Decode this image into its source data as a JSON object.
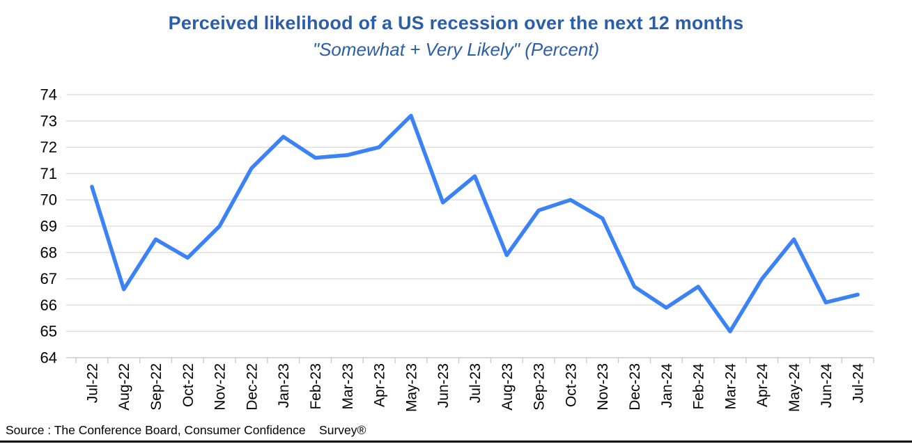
{
  "header": {
    "title": "Perceived likelihood of a US recession over the next 12 months",
    "subtitle": "\"Somewhat + Very Likely\" (Percent)"
  },
  "footer": {
    "source": "Source : The Conference Board, Consumer Confidence    Survey®"
  },
  "colors": {
    "title_blue": "#2B5EA9",
    "line_blue": "#3B82F6",
    "gridline": "#DBDBDB",
    "axis": "#C8C8C8",
    "label_text": "#000000",
    "bottom_rule": "#000000"
  },
  "chart_data": {
    "type": "line",
    "title": "Perceived likelihood of a US recession over the next 12 months",
    "subtitle": "\"Somewhat + Very Likely\" (Percent)",
    "categories": [
      "Jul-22",
      "Aug-22",
      "Sep-22",
      "Oct-22",
      "Nov-22",
      "Dec-22",
      "Jan-23",
      "Feb-23",
      "Mar-23",
      "Apr-23",
      "May-23",
      "Jun-23",
      "Jul-23",
      "Aug-23",
      "Sep-23",
      "Oct-23",
      "Nov-23",
      "Dec-23",
      "Jan-24",
      "Feb-24",
      "Mar-24",
      "Apr-24",
      "May-24",
      "Jun-24",
      "Jul-24"
    ],
    "series": [
      {
        "name": "Somewhat + Very Likely (Percent)",
        "values": [
          70.5,
          66.6,
          68.5,
          67.8,
          69.0,
          71.2,
          72.4,
          71.6,
          71.7,
          72.0,
          73.2,
          69.9,
          70.9,
          67.9,
          69.6,
          70.0,
          69.3,
          66.7,
          65.9,
          66.7,
          65.0,
          67.0,
          68.5,
          66.1,
          66.4
        ]
      }
    ],
    "xlabel": "",
    "ylabel": "",
    "ylim": [
      64,
      74
    ],
    "ytick_step": 1,
    "yticks": [
      64,
      65,
      66,
      67,
      68,
      69,
      70,
      71,
      72,
      73,
      74
    ],
    "grid": "horizontal",
    "legend_position": "none",
    "line_color": "#3B82F6"
  }
}
